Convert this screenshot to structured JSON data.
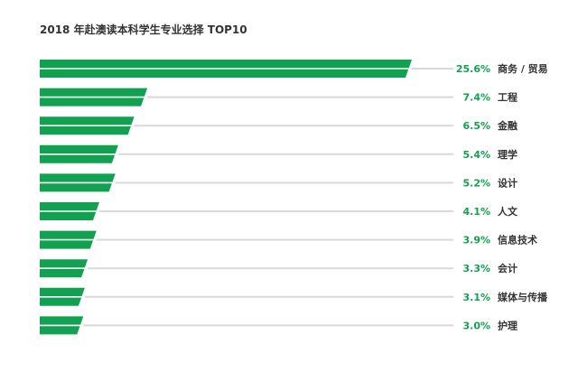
{
  "chart_data": {
    "type": "bar",
    "orientation": "horizontal",
    "title": "2018 年赴澳读本科学生专业选择 TOP10",
    "categories": [
      "商务 / 贸易",
      "工程",
      "金融",
      "理学",
      "设计",
      "人文",
      "信息技术",
      "会计",
      "媒体与传播",
      "护理"
    ],
    "values": [
      25.6,
      7.4,
      6.5,
      5.4,
      5.2,
      4.1,
      3.9,
      3.3,
      3.1,
      3.0
    ],
    "value_labels": [
      "25.6%",
      "7.4%",
      "6.5%",
      "5.4%",
      "5.2%",
      "4.1%",
      "3.9%",
      "3.3%",
      "3.1%",
      "3.0%"
    ],
    "unit": "%",
    "xlim": [
      0,
      25.6
    ],
    "grid": false,
    "legend": "none",
    "colors": {
      "bar": "#12a150",
      "track": "#d9d9d9",
      "value_label": "#12a150",
      "category_label": "#333333",
      "title": "#333333"
    }
  }
}
